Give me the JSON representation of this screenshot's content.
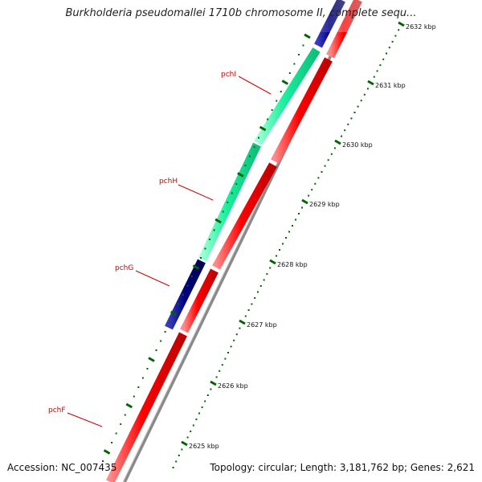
{
  "title": "Burkholderia pseudomallei 1710b chromosome II, complete sequ...",
  "footer": {
    "accession": "Accession: NC_007435",
    "summary": "Topology: circular; Length: 3,181,762 bp; Genes: 2,621"
  },
  "colors": {
    "forward_track": "#19ef9e",
    "forward_track_alt": "#00007f",
    "reverse_track": "#ff0000",
    "backbone": "#888888",
    "tick": "#006400",
    "label": "#cc0000"
  },
  "scale_ticks": [
    {
      "label": "2625 kbp",
      "kbp": 2625
    },
    {
      "label": "2626 kbp",
      "kbp": 2626
    },
    {
      "label": "2627 kbp",
      "kbp": 2627
    },
    {
      "label": "2628 kbp",
      "kbp": 2628
    },
    {
      "label": "2629 kbp",
      "kbp": 2629
    },
    {
      "label": "2630 kbp",
      "kbp": 2630
    },
    {
      "label": "2631 kbp",
      "kbp": 2631
    },
    {
      "label": "2632 kbp",
      "kbp": 2632
    }
  ],
  "genes": [
    {
      "label": "pchF",
      "strand": "reverse",
      "color": "red"
    },
    {
      "label": "pchG",
      "strand": "forward",
      "color": "navy"
    },
    {
      "label": "pchH",
      "strand": "forward",
      "color": "green"
    },
    {
      "label": "pchI",
      "strand": "forward",
      "color": "green"
    }
  ]
}
